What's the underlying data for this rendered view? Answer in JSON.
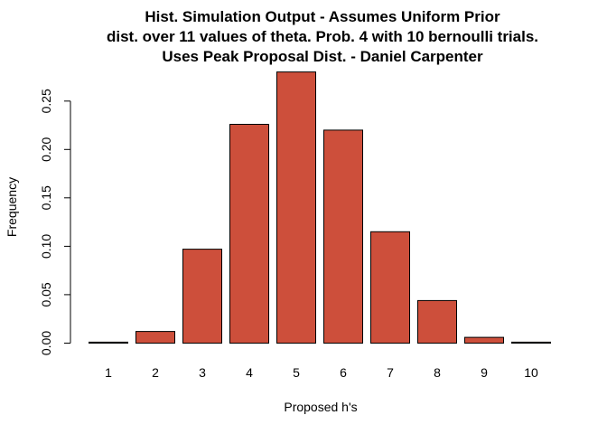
{
  "chart_data": {
    "type": "bar",
    "title_lines": [
      "Hist. Simulation Output - Assumes Uniform Prior",
      "dist. over  11  values of theta. Prob.  4  with  10 bernoulli trials.",
      "Uses Peak Proposal Dist. - Daniel Carpenter"
    ],
    "xlabel": "Proposed h's",
    "ylabel": "Frequency",
    "categories": [
      "1",
      "2",
      "3",
      "4",
      "5",
      "6",
      "7",
      "8",
      "9",
      "10"
    ],
    "values": [
      0.001,
      0.012,
      0.097,
      0.226,
      0.28,
      0.22,
      0.115,
      0.044,
      0.006,
      0.001
    ],
    "yticks": [
      "0.00",
      "0.05",
      "0.10",
      "0.15",
      "0.20",
      "0.25"
    ],
    "ylim": [
      0,
      0.28
    ],
    "grid": false,
    "legend": "none",
    "bar_color": "#CD4F3B",
    "border_color": "#000000"
  }
}
